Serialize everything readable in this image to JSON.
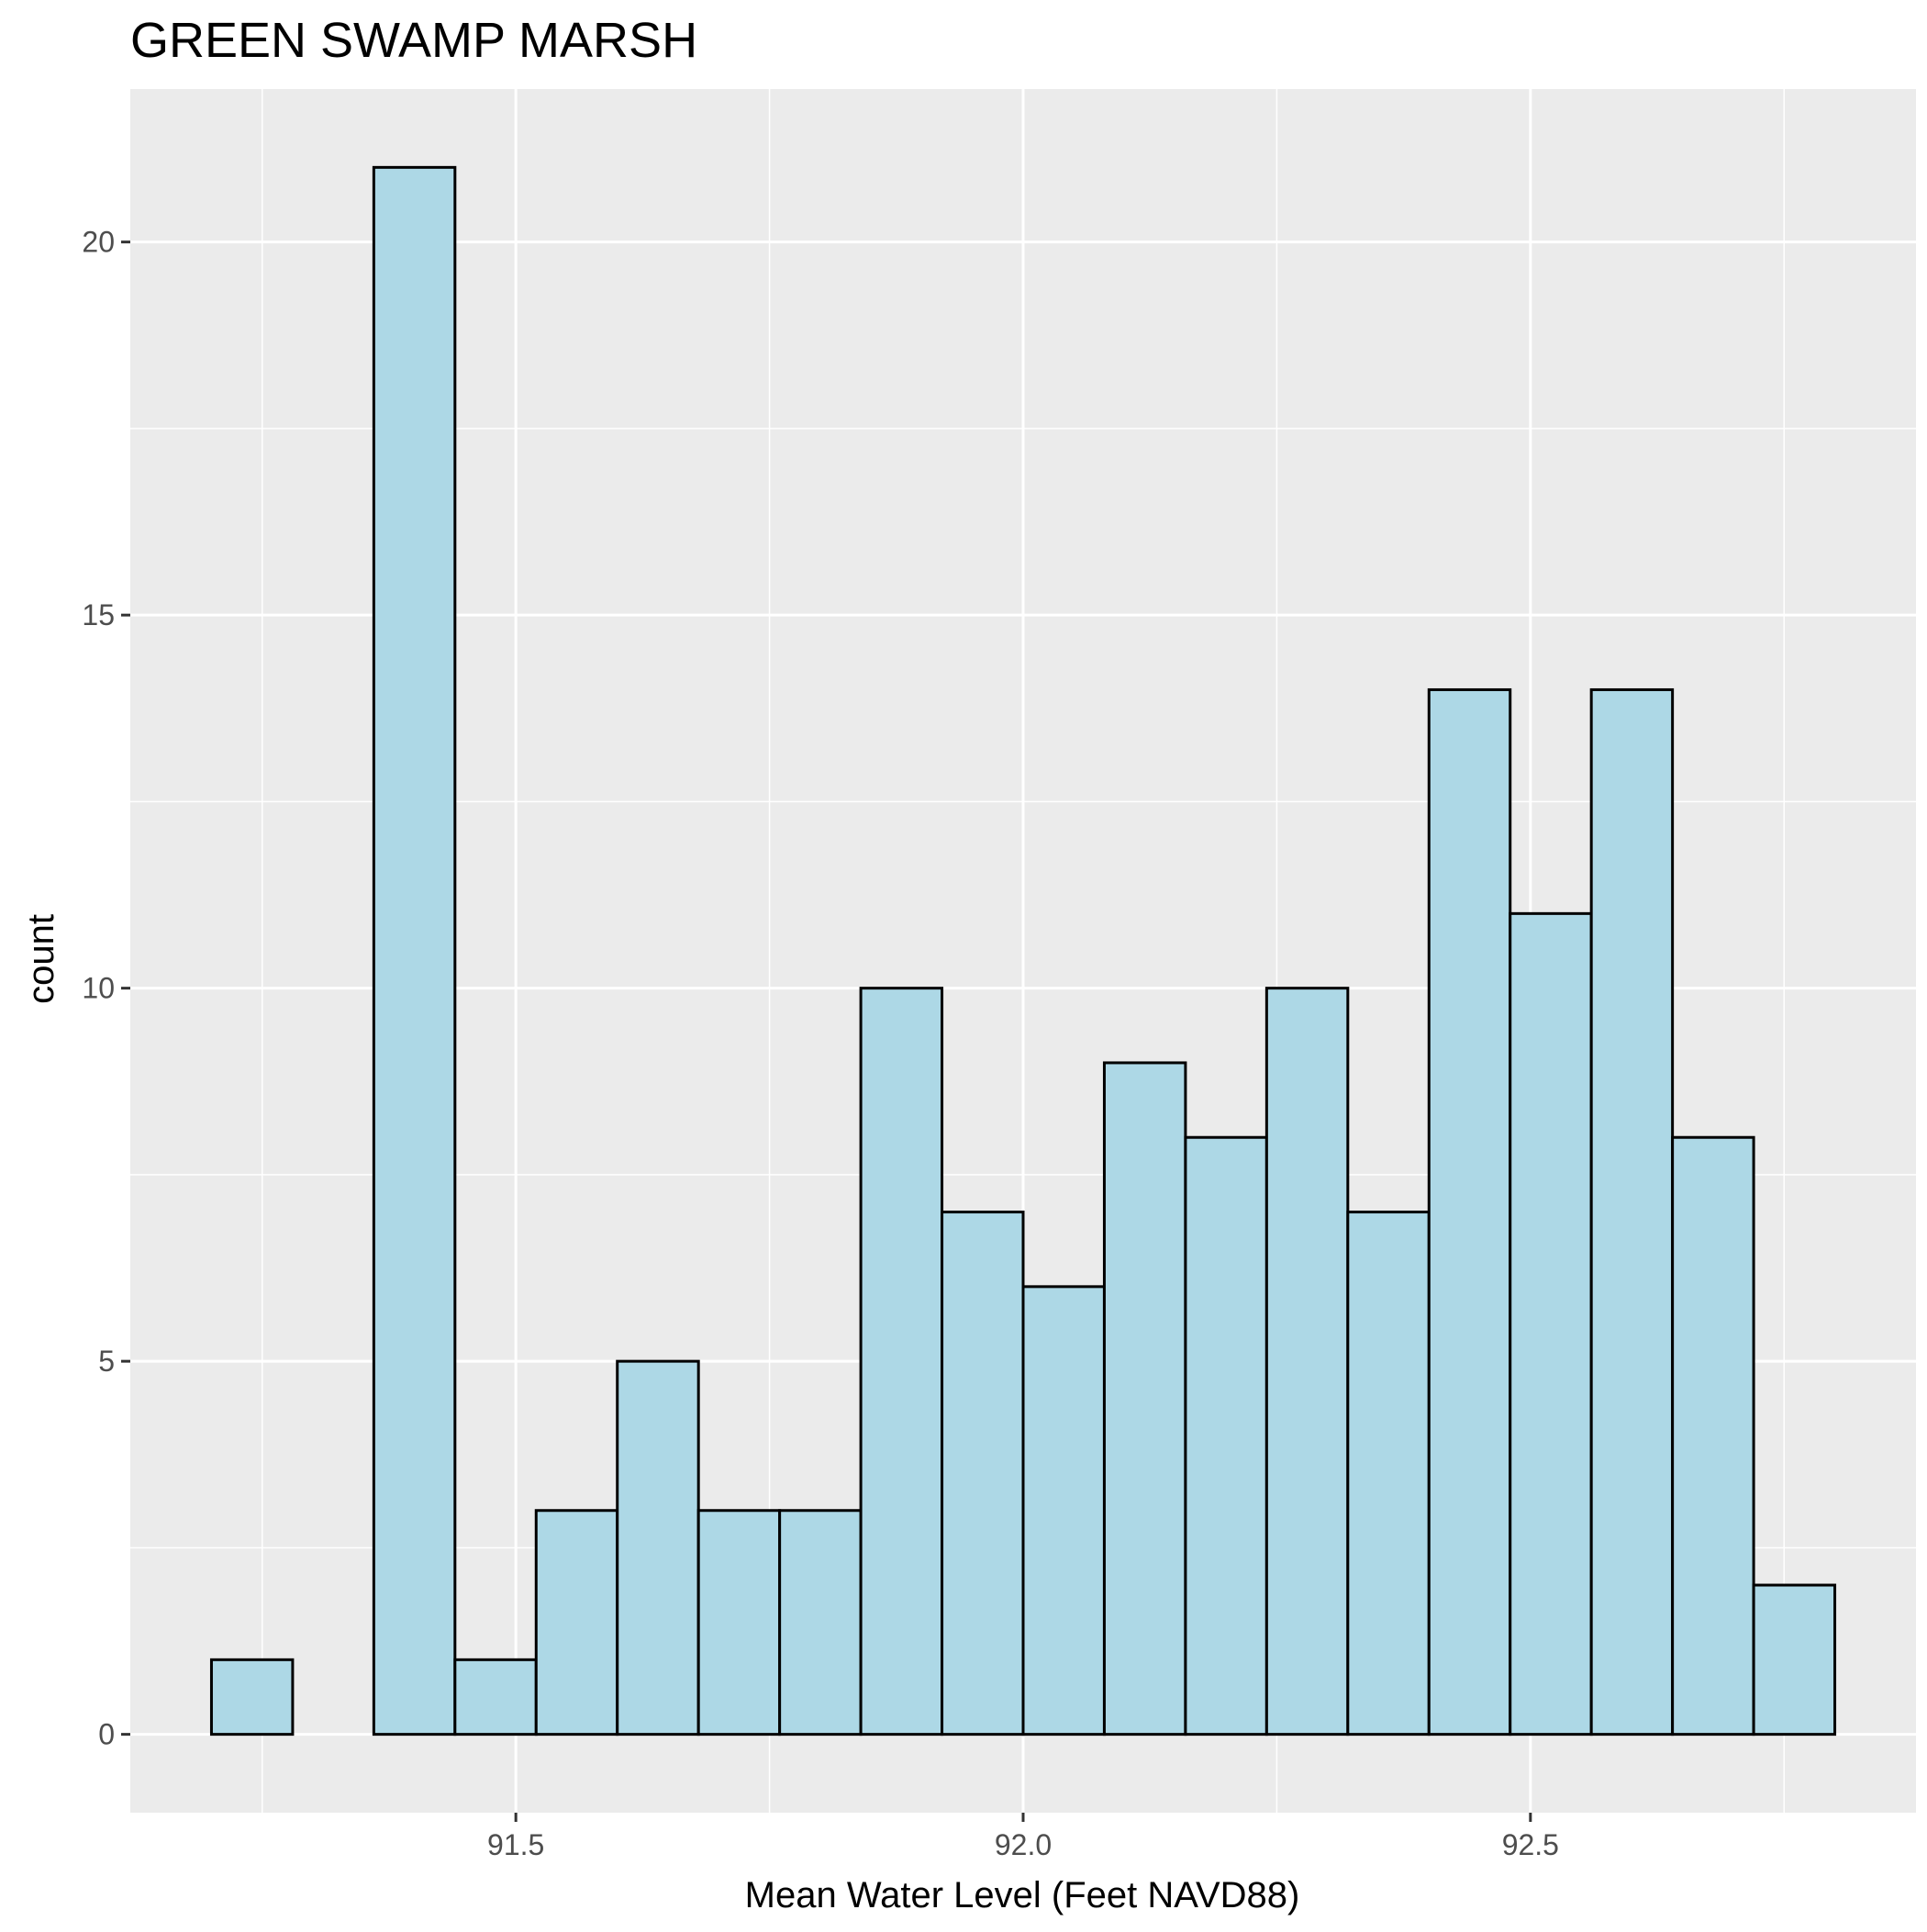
{
  "chart_data": {
    "type": "bar",
    "title": "GREEN SWAMP MARSH",
    "xlabel": "Mean Water Level (Feet NAVD88)",
    "ylabel": "count",
    "bin_edges": [
      91.2,
      91.28,
      91.36,
      91.44,
      91.52,
      91.6,
      91.68,
      91.76,
      91.84,
      91.92,
      92.0,
      92.08,
      92.16,
      92.24,
      92.32,
      92.4,
      92.48,
      92.56,
      92.64,
      92.72,
      92.8
    ],
    "values": [
      1,
      0,
      21,
      1,
      3,
      5,
      3,
      3,
      10,
      7,
      6,
      9,
      8,
      10,
      7,
      14,
      11,
      14,
      8,
      2
    ],
    "xlim": [
      91.12,
      92.88
    ],
    "ylim": [
      -1.05,
      22.05
    ],
    "x_ticks": [
      91.5,
      92.0,
      92.5
    ],
    "x_tick_labels": [
      "91.5",
      "92.0",
      "92.5"
    ],
    "x_minor_ticks": [
      91.25,
      91.75,
      92.25,
      92.75
    ],
    "y_ticks": [
      0,
      5,
      10,
      15,
      20
    ],
    "y_tick_labels": [
      "0",
      "5",
      "10",
      "15",
      "20"
    ],
    "y_minor_ticks": [
      2.5,
      7.5,
      12.5,
      17.5
    ],
    "grid": true,
    "colors": {
      "panel_background": "#EBEBEB",
      "grid_line": "#FFFFFF",
      "bar_fill": "#ADD8E6",
      "bar_outline": "#000000",
      "tick_mark": "#333333"
    }
  }
}
